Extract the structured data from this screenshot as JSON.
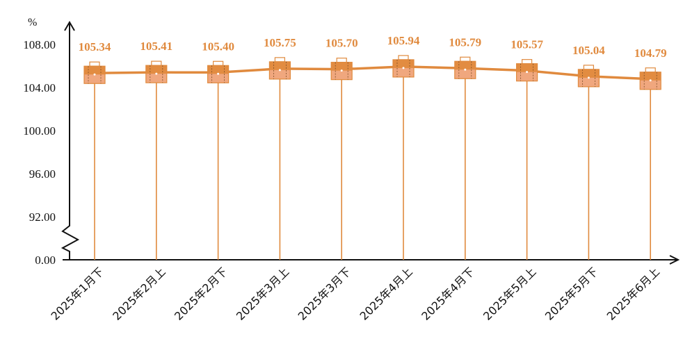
{
  "chart_data": {
    "type": "line",
    "title": "",
    "ylabel": "%",
    "xlabel": "",
    "categories": [
      "2025年1月下",
      "2025年2月上",
      "2025年2月下",
      "2025年3月上",
      "2025年3月下",
      "2025年4月上",
      "2025年4月下",
      "2025年5月上",
      "2025年5月下",
      "2025年6月上"
    ],
    "series": [
      {
        "values": [
          105.34,
          105.41,
          105.4,
          105.75,
          105.7,
          105.94,
          105.79,
          105.57,
          105.04,
          104.79
        ]
      }
    ],
    "data_labels": [
      "105.34",
      "105.41",
      "105.40",
      "105.75",
      "105.70",
      "105.94",
      "105.79",
      "105.57",
      "105.04",
      "104.79"
    ],
    "y_ticks": [
      "0.00",
      "92.00",
      "96.00",
      "100.00",
      "104.00",
      "108.00"
    ],
    "ylim": [
      92,
      108
    ],
    "axis_break": true,
    "grid": false,
    "legend": "none",
    "line_color": "#e08a3e",
    "marker_color": "#e08a3e"
  }
}
